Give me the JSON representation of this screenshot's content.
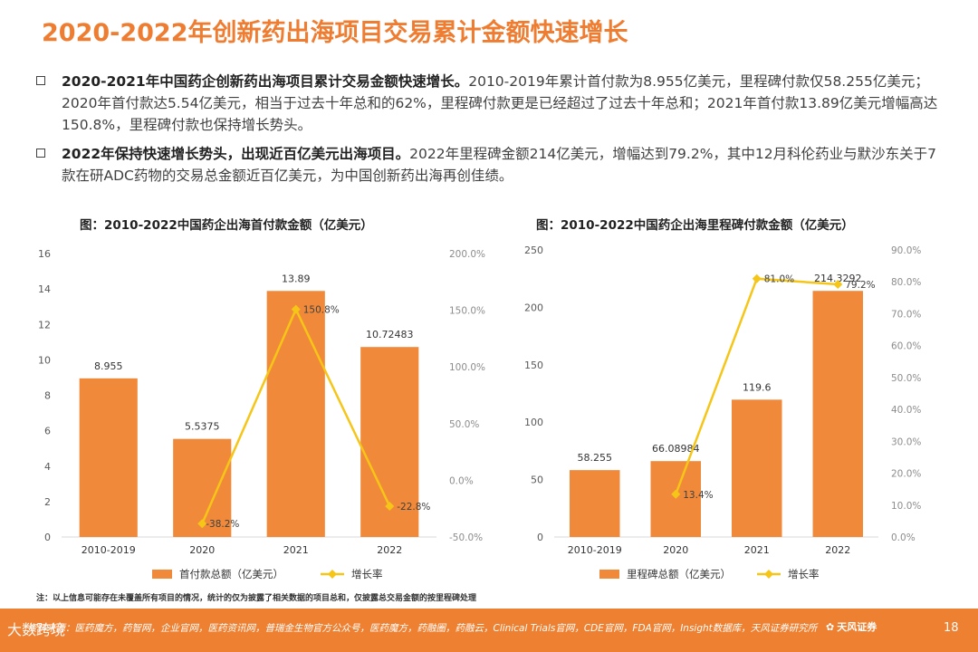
{
  "title": "2020-2022年创新药出海项目交易累计金额快速增长",
  "bullets": [
    {
      "bold": "2020-2021年中国药企创新药出海项目累计交易金额快速增长。",
      "text": "2010-2019年累计首付款为8.955亿美元，里程碑付款仅58.255亿美元；2020年首付款达5.54亿美元，相当于过去十年总和的62%，里程碑付款更是已经超过了过去十年总和；2021年首付款13.89亿美元增幅高达150.8%，里程碑付款也保持增长势头。"
    },
    {
      "bold": "2022年保持快速增长势头，出现近百亿美元出海项目。",
      "text": "2022年里程碑金额214亿美元，增幅达到79.2%，其中12月科伦药业与默沙东关于7款在研ADC药物的交易总金额近百亿美元，为中国创新药出海再创佳绩。"
    }
  ],
  "chart_data": [
    {
      "type": "bar",
      "title": "图：2010-2022中国药企出海首付款金额（亿美元）",
      "categories": [
        "2010-2019",
        "2020",
        "2021",
        "2022"
      ],
      "series": [
        {
          "name": "首付款总额（亿美元）",
          "type": "bar",
          "values": [
            8.955,
            5.5375,
            13.89,
            10.72483
          ],
          "labels": [
            "8.955",
            "5.5375",
            "13.89",
            "10.72483"
          ]
        },
        {
          "name": "增长率",
          "type": "line",
          "axis": "right",
          "x": [
            "2020",
            "2021",
            "2022"
          ],
          "values": [
            -38.2,
            150.8,
            -22.8
          ],
          "labels": [
            "-38.2%",
            "150.8%",
            "-22.8%"
          ]
        }
      ],
      "ylim": [
        0,
        16
      ],
      "yticks": [
        "0",
        "2",
        "4",
        "6",
        "8",
        "10",
        "12",
        "14",
        "16"
      ],
      "y2lim": [
        -50,
        200
      ],
      "y2ticks": [
        "-50.0%",
        "0.0%",
        "50.0%",
        "100.0%",
        "150.0%",
        "200.0%"
      ],
      "legend": "bottom"
    },
    {
      "type": "bar",
      "title": "图：2010-2022中国药企出海里程碑付款金额（亿美元）",
      "categories": [
        "2010-2019",
        "2020",
        "2021",
        "2022"
      ],
      "series": [
        {
          "name": "里程碑总额（亿美元）",
          "type": "bar",
          "values": [
            58.255,
            66.08984,
            119.6,
            214.3292
          ],
          "labels": [
            "58.255",
            "66.08984",
            "119.6",
            "214.3292"
          ]
        },
        {
          "name": "增长率",
          "type": "line",
          "axis": "right",
          "x": [
            "2020",
            "2021",
            "2022"
          ],
          "values": [
            13.4,
            81.0,
            79.2
          ],
          "labels": [
            "13.4%",
            "81.0%",
            "79.2%"
          ]
        }
      ],
      "ylim": [
        0,
        250
      ],
      "yticks": [
        "0",
        "50",
        "100",
        "150",
        "200",
        "250"
      ],
      "y2lim": [
        0,
        90
      ],
      "y2ticks": [
        "0.0%",
        "10.0%",
        "20.0%",
        "30.0%",
        "40.0%",
        "50.0%",
        "60.0%",
        "70.0%",
        "80.0%",
        "90.0%"
      ],
      "legend": "bottom"
    }
  ],
  "note": "注：以上信息可能存在未覆盖所有项目的情况，统计的仅为披露了相关数据的项目总和，仅披露总交易金额的按里程碑处理",
  "footer": {
    "watermark": "大数跨境",
    "source": "资料来源：医药魔方，药智网，企业官网，医药资讯网，普瑞金生物官方公众号，医药魔方，药融圈，药融云，Clinical Trials官网，CDE官网，FDA官网，Insight数据库，天风证券研究所",
    "logo": "天风证券",
    "page": "18"
  },
  "colors": {
    "bar": "#f08a3a",
    "line": "#f5c518",
    "accent": "#ee7d31",
    "footer": "#ee8031"
  }
}
